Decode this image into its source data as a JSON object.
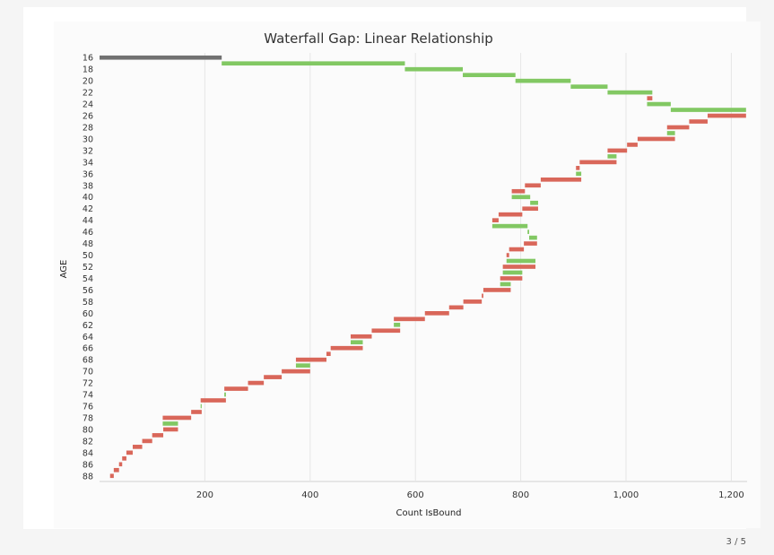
{
  "page_counter": "3 / 5",
  "chart_data": {
    "type": "bar",
    "subtype": "waterfall-horizontal",
    "title": "Waterfall Gap: Linear Relationship",
    "xlabel": "Count IsBound",
    "ylabel": "AGE",
    "xlim": [
      0,
      1230
    ],
    "x_ticks": [
      "200",
      "400",
      "600",
      "800",
      "1,000",
      "1,200"
    ],
    "x_tick_values": [
      200,
      400,
      600,
      800,
      1000,
      1200
    ],
    "grid": "vertical",
    "colors": {
      "base": "#717171",
      "increase": "#82c863",
      "decrease": "#d9675a"
    },
    "categories": [
      16,
      17,
      18,
      19,
      20,
      21,
      22,
      23,
      24,
      25,
      26,
      27,
      28,
      29,
      30,
      31,
      32,
      33,
      34,
      35,
      36,
      37,
      38,
      39,
      40,
      41,
      42,
      43,
      44,
      45,
      46,
      47,
      48,
      49,
      50,
      51,
      52,
      53,
      54,
      55,
      56,
      57,
      58,
      59,
      60,
      61,
      62,
      63,
      64,
      65,
      66,
      67,
      68,
      69,
      70,
      71,
      72,
      73,
      74,
      75,
      76,
      77,
      78,
      79,
      80,
      81,
      82,
      83,
      84,
      85,
      86,
      87,
      88
    ],
    "y_tick_labels": [
      "16",
      "18",
      "20",
      "22",
      "24",
      "26",
      "28",
      "30",
      "32",
      "34",
      "36",
      "38",
      "40",
      "42",
      "44",
      "46",
      "48",
      "50",
      "52",
      "54",
      "56",
      "58",
      "60",
      "62",
      "64",
      "66",
      "68",
      "70",
      "72",
      "74",
      "76",
      "78",
      "80",
      "82",
      "84",
      "86",
      "88"
    ],
    "bars": [
      {
        "age": 16,
        "start": 0,
        "end": 232,
        "kind": "base"
      },
      {
        "age": 17,
        "start": 232,
        "end": 580,
        "kind": "increase"
      },
      {
        "age": 18,
        "start": 580,
        "end": 690,
        "kind": "increase"
      },
      {
        "age": 19,
        "start": 690,
        "end": 790,
        "kind": "increase"
      },
      {
        "age": 20,
        "start": 790,
        "end": 895,
        "kind": "increase"
      },
      {
        "age": 21,
        "start": 895,
        "end": 965,
        "kind": "increase"
      },
      {
        "age": 22,
        "start": 965,
        "end": 1050,
        "kind": "increase"
      },
      {
        "age": 23,
        "start": 1050,
        "end": 1040,
        "kind": "decrease"
      },
      {
        "age": 24,
        "start": 1040,
        "end": 1085,
        "kind": "increase"
      },
      {
        "age": 25,
        "start": 1085,
        "end": 1228,
        "kind": "increase"
      },
      {
        "age": 26,
        "start": 1228,
        "end": 1155,
        "kind": "decrease"
      },
      {
        "age": 27,
        "start": 1155,
        "end": 1120,
        "kind": "decrease"
      },
      {
        "age": 28,
        "start": 1120,
        "end": 1078,
        "kind": "decrease"
      },
      {
        "age": 29,
        "start": 1078,
        "end": 1093,
        "kind": "increase"
      },
      {
        "age": 30,
        "start": 1093,
        "end": 1022,
        "kind": "decrease"
      },
      {
        "age": 31,
        "start": 1022,
        "end": 1002,
        "kind": "decrease"
      },
      {
        "age": 32,
        "start": 1002,
        "end": 965,
        "kind": "decrease"
      },
      {
        "age": 33,
        "start": 965,
        "end": 982,
        "kind": "increase"
      },
      {
        "age": 34,
        "start": 982,
        "end": 912,
        "kind": "decrease"
      },
      {
        "age": 35,
        "start": 912,
        "end": 905,
        "kind": "decrease"
      },
      {
        "age": 36,
        "start": 905,
        "end": 915,
        "kind": "increase"
      },
      {
        "age": 37,
        "start": 915,
        "end": 838,
        "kind": "decrease"
      },
      {
        "age": 38,
        "start": 838,
        "end": 808,
        "kind": "decrease"
      },
      {
        "age": 39,
        "start": 808,
        "end": 783,
        "kind": "decrease"
      },
      {
        "age": 40,
        "start": 783,
        "end": 818,
        "kind": "increase"
      },
      {
        "age": 41,
        "start": 818,
        "end": 833,
        "kind": "increase"
      },
      {
        "age": 42,
        "start": 833,
        "end": 803,
        "kind": "decrease"
      },
      {
        "age": 43,
        "start": 803,
        "end": 758,
        "kind": "decrease"
      },
      {
        "age": 44,
        "start": 758,
        "end": 746,
        "kind": "decrease"
      },
      {
        "age": 45,
        "start": 746,
        "end": 813,
        "kind": "increase"
      },
      {
        "age": 46,
        "start": 813,
        "end": 816,
        "kind": "increase"
      },
      {
        "age": 47,
        "start": 816,
        "end": 831,
        "kind": "increase"
      },
      {
        "age": 48,
        "start": 831,
        "end": 806,
        "kind": "decrease"
      },
      {
        "age": 49,
        "start": 806,
        "end": 778,
        "kind": "decrease"
      },
      {
        "age": 50,
        "start": 778,
        "end": 773,
        "kind": "decrease"
      },
      {
        "age": 51,
        "start": 773,
        "end": 828,
        "kind": "increase"
      },
      {
        "age": 52,
        "start": 828,
        "end": 766,
        "kind": "decrease"
      },
      {
        "age": 53,
        "start": 766,
        "end": 803,
        "kind": "increase"
      },
      {
        "age": 54,
        "start": 803,
        "end": 761,
        "kind": "decrease"
      },
      {
        "age": 55,
        "start": 761,
        "end": 781,
        "kind": "increase"
      },
      {
        "age": 56,
        "start": 781,
        "end": 729,
        "kind": "decrease"
      },
      {
        "age": 57,
        "start": 729,
        "end": 726,
        "kind": "decrease"
      },
      {
        "age": 58,
        "start": 726,
        "end": 691,
        "kind": "decrease"
      },
      {
        "age": 59,
        "start": 691,
        "end": 664,
        "kind": "decrease"
      },
      {
        "age": 60,
        "start": 664,
        "end": 618,
        "kind": "decrease"
      },
      {
        "age": 61,
        "start": 618,
        "end": 559,
        "kind": "decrease"
      },
      {
        "age": 62,
        "start": 559,
        "end": 571,
        "kind": "increase"
      },
      {
        "age": 63,
        "start": 571,
        "end": 517,
        "kind": "decrease"
      },
      {
        "age": 64,
        "start": 517,
        "end": 477,
        "kind": "decrease"
      },
      {
        "age": 65,
        "start": 477,
        "end": 500,
        "kind": "increase"
      },
      {
        "age": 66,
        "start": 500,
        "end": 439,
        "kind": "decrease"
      },
      {
        "age": 67,
        "start": 439,
        "end": 431,
        "kind": "decrease"
      },
      {
        "age": 68,
        "start": 431,
        "end": 373,
        "kind": "decrease"
      },
      {
        "age": 69,
        "start": 373,
        "end": 400,
        "kind": "increase"
      },
      {
        "age": 70,
        "start": 400,
        "end": 346,
        "kind": "decrease"
      },
      {
        "age": 71,
        "start": 346,
        "end": 312,
        "kind": "decrease"
      },
      {
        "age": 72,
        "start": 312,
        "end": 282,
        "kind": "decrease"
      },
      {
        "age": 73,
        "start": 282,
        "end": 237,
        "kind": "decrease"
      },
      {
        "age": 74,
        "start": 237,
        "end": 240,
        "kind": "increase"
      },
      {
        "age": 75,
        "start": 240,
        "end": 192,
        "kind": "decrease"
      },
      {
        "age": 76,
        "start": 192,
        "end": 194,
        "kind": "increase"
      },
      {
        "age": 77,
        "start": 194,
        "end": 174,
        "kind": "decrease"
      },
      {
        "age": 78,
        "start": 174,
        "end": 120,
        "kind": "decrease"
      },
      {
        "age": 79,
        "start": 120,
        "end": 149,
        "kind": "increase"
      },
      {
        "age": 80,
        "start": 149,
        "end": 121,
        "kind": "decrease"
      },
      {
        "age": 81,
        "start": 121,
        "end": 100,
        "kind": "decrease"
      },
      {
        "age": 82,
        "start": 100,
        "end": 81,
        "kind": "decrease"
      },
      {
        "age": 83,
        "start": 81,
        "end": 63,
        "kind": "decrease"
      },
      {
        "age": 84,
        "start": 63,
        "end": 51,
        "kind": "decrease"
      },
      {
        "age": 85,
        "start": 51,
        "end": 43,
        "kind": "decrease"
      },
      {
        "age": 86,
        "start": 43,
        "end": 37,
        "kind": "decrease"
      },
      {
        "age": 87,
        "start": 37,
        "end": 27,
        "kind": "decrease"
      },
      {
        "age": 88,
        "start": 27,
        "end": 20,
        "kind": "decrease"
      }
    ]
  }
}
